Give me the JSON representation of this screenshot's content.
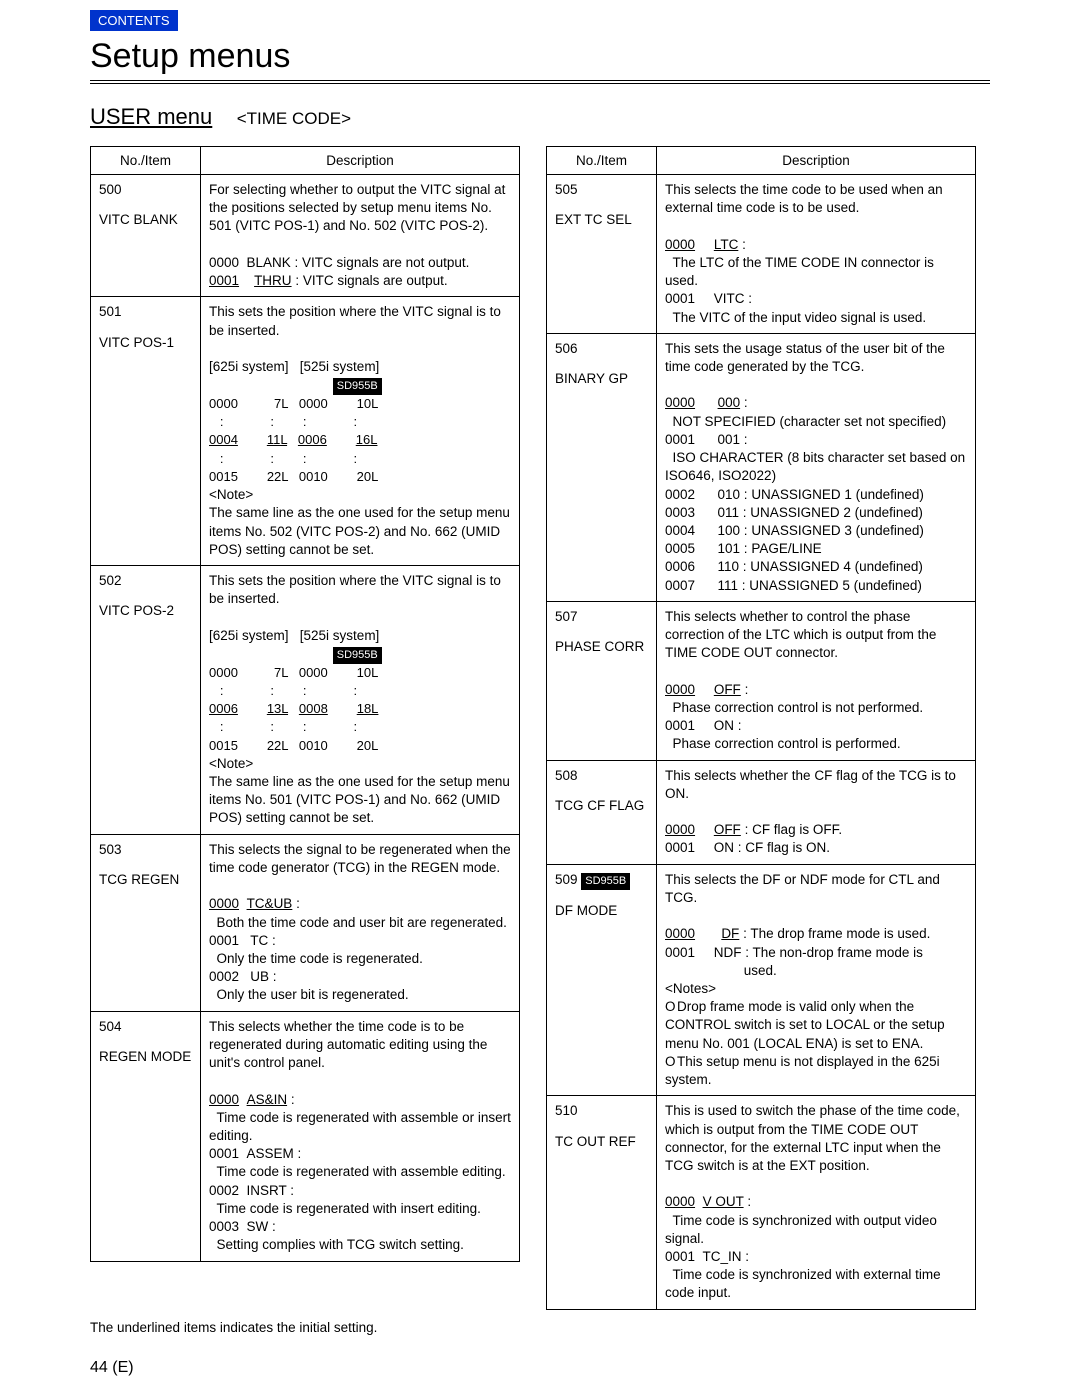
{
  "header": {
    "contents_label": "CONTENTS",
    "title": "Setup menus",
    "menu_title": "USER menu",
    "menu_subtitle": "<TIME CODE>"
  },
  "col_headers": {
    "no": "No./Item",
    "desc": "Description"
  },
  "left": [
    {
      "no": "500",
      "item": "VITC BLANK",
      "desc_html": "For selecting whether to output the VITC signal at the positions selected by setup menu items No. 501 (VITC POS-1) and No. 502 (VITC POS-2).<br><br>0000&nbsp;&nbsp;BLANK : VITC signals are not output.<br><span class='u'>0001</span>&nbsp;&nbsp;&nbsp;&nbsp;<span class='u'>THRU</span> : VITC signals are output."
    },
    {
      "no": "501",
      "item": "VITC POS-1",
      "desc_html": "This sets the position where the VITC signal is to be inserted.<br><br>[625i system]&nbsp;&nbsp;&nbsp;[525i system]<br>&nbsp;&nbsp;&nbsp;&nbsp;&nbsp;&nbsp;&nbsp;&nbsp;&nbsp;&nbsp;&nbsp;&nbsp;&nbsp;&nbsp;&nbsp;&nbsp;&nbsp;&nbsp;&nbsp;&nbsp;&nbsp;&nbsp;&nbsp;&nbsp;&nbsp;&nbsp;&nbsp;&nbsp;&nbsp;&nbsp;&nbsp;&nbsp;&nbsp;<span class='tag'>SD955B</span><br><span class='grid625'>0000          7L   0000        10L\n   :             :        :             :\n<span class='u'>0004</span>        <span class='u'>11L</span>   <span class='u'>0006</span>        <span class='u'>16L</span>\n   :             :        :             :\n0015        22L   0010        20L</span><br>&lt;Note&gt;<br>The same line as the one used for the setup menu items No. 502 (VITC POS-2) and No. 662 (UMID POS) setting cannot be set."
    },
    {
      "no": "502",
      "item": "VITC POS-2",
      "desc_html": "This sets the position where the VITC signal is to be inserted.<br><br>[625i system]&nbsp;&nbsp;&nbsp;[525i system]<br>&nbsp;&nbsp;&nbsp;&nbsp;&nbsp;&nbsp;&nbsp;&nbsp;&nbsp;&nbsp;&nbsp;&nbsp;&nbsp;&nbsp;&nbsp;&nbsp;&nbsp;&nbsp;&nbsp;&nbsp;&nbsp;&nbsp;&nbsp;&nbsp;&nbsp;&nbsp;&nbsp;&nbsp;&nbsp;&nbsp;&nbsp;&nbsp;&nbsp;<span class='tag'>SD955B</span><br><span class='grid625'>0000          7L   0000        10L\n   :             :        :             :\n<span class='u'>0006</span>        <span class='u'>13L</span>   <span class='u'>0008</span>        <span class='u'>18L</span>\n   :             :        :             :\n0015        22L   0010        20L</span><br>&lt;Note&gt;<br>The same line as the one used for the setup menu items No. 501 (VITC POS-1) and No. 662 (UMID POS) setting cannot be set."
    },
    {
      "no": "503",
      "item": "TCG REGEN",
      "desc_html": "This selects the signal to be regenerated when the time code generator (TCG) in the REGEN mode.<br><br><span class='u'>0000</span>&nbsp;&nbsp;<span class='u'>TC&amp;UB</span> :<br>&nbsp;&nbsp;Both the time code and user bit are regenerated.<br>0001&nbsp;&nbsp;&nbsp;TC :<br>&nbsp;&nbsp;Only the time code is regenerated.<br>0002&nbsp;&nbsp;&nbsp;UB :<br>&nbsp;&nbsp;Only the user bit is regenerated."
    },
    {
      "no": "504",
      "item": "REGEN MODE",
      "desc_html": "This selects whether the time code is to be regenerated during automatic editing using the unit's control panel.<br><br><span class='u'>0000</span>&nbsp;&nbsp;<span class='u'>AS&amp;IN</span> :<br>&nbsp;&nbsp;Time code is regenerated with assemble or insert editing.<br>0001&nbsp;&nbsp;ASSEM :<br>&nbsp;&nbsp;Time code is regenerated with assemble editing.<br>0002&nbsp;&nbsp;INSRT :<br>&nbsp;&nbsp;Time code is regenerated with insert editing.<br>0003&nbsp;&nbsp;SW :<br>&nbsp;&nbsp;Setting complies with TCG switch setting."
    }
  ],
  "right": [
    {
      "no": "505",
      "item": "EXT TC SEL",
      "desc_html": "This selects the time code to be used when an external time code is to be used.<br><br><span class='u'>0000</span>&nbsp;&nbsp;&nbsp;&nbsp;&nbsp;<span class='u'>LTC</span> :<br>&nbsp;&nbsp;The LTC of the TIME CODE IN connector is used.<br>0001&nbsp;&nbsp;&nbsp;&nbsp;&nbsp;VITC :<br>&nbsp;&nbsp;The VITC of the input video signal is used."
    },
    {
      "no": "506",
      "item": "BINARY GP",
      "desc_html": "This sets the usage status of the user bit of the time code generated by the TCG.<br><br><span class='u'>0000</span>&nbsp;&nbsp;&nbsp;&nbsp;&nbsp;&nbsp;<span class='u'>000</span> :<br>&nbsp;&nbsp;NOT SPECIFIED (character set not specified)<br>0001&nbsp;&nbsp;&nbsp;&nbsp;&nbsp;&nbsp;001 :<br>&nbsp;&nbsp;ISO CHARACTER (8 bits character set based on ISO646, ISO2022)<br>0002&nbsp;&nbsp;&nbsp;&nbsp;&nbsp;&nbsp;010 : UNASSIGNED 1 (undefined)<br>0003&nbsp;&nbsp;&nbsp;&nbsp;&nbsp;&nbsp;011 : UNASSIGNED 2 (undefined)<br>0004&nbsp;&nbsp;&nbsp;&nbsp;&nbsp;&nbsp;100 : UNASSIGNED 3 (undefined)<br>0005&nbsp;&nbsp;&nbsp;&nbsp;&nbsp;&nbsp;101 : PAGE/LINE<br>0006&nbsp;&nbsp;&nbsp;&nbsp;&nbsp;&nbsp;110 : UNASSIGNED 4 (undefined)<br>0007&nbsp;&nbsp;&nbsp;&nbsp;&nbsp;&nbsp;111 : UNASSIGNED 5 (undefined)"
    },
    {
      "no": "507",
      "item": "PHASE CORR",
      "desc_html": "This selects whether to control the phase correction of the LTC which is output from the TIME CODE OUT connector.<br><br><span class='u'>0000</span>&nbsp;&nbsp;&nbsp;&nbsp;&nbsp;<span class='u'>OFF</span> :<br>&nbsp;&nbsp;Phase correction control is not performed.<br>0001&nbsp;&nbsp;&nbsp;&nbsp;&nbsp;ON :<br>&nbsp;&nbsp;Phase correction control is performed."
    },
    {
      "no": "508",
      "item": "TCG CF FLAG",
      "desc_html": "This selects whether the CF flag of the TCG is to ON.<br><br><span class='u'>0000</span>&nbsp;&nbsp;&nbsp;&nbsp;&nbsp;<span class='u'>OFF</span> : CF flag is OFF.<br>0001&nbsp;&nbsp;&nbsp;&nbsp;&nbsp;ON : CF flag is ON."
    },
    {
      "no": "509 <span class='tag'>SD955B</span>",
      "item": "DF MODE",
      "desc_html": "This selects the DF or NDF mode for CTL and TCG.<br><br><span class='u'>0000</span>&nbsp;&nbsp;&nbsp;&nbsp;&nbsp;&nbsp;&nbsp;<span class='u'>DF</span> : The drop frame mode is used.<br>0001&nbsp;&nbsp;&nbsp;&nbsp;&nbsp;NDF : The non-drop frame mode is<br>&nbsp;&nbsp;&nbsp;&nbsp;&nbsp;&nbsp;&nbsp;&nbsp;&nbsp;&nbsp;&nbsp;&nbsp;&nbsp;&nbsp;&nbsp;&nbsp;&nbsp;&nbsp;&nbsp;&nbsp;&nbsp;used.<br>&lt;Notes&gt;<br><span class='circle'>O</span>Drop frame mode is valid only when the CONTROL switch is set to LOCAL or the setup menu No. 001 (LOCAL ENA) is set to ENA.<br><span class='circle'>O</span>This setup menu is not displayed in the 625i system."
    },
    {
      "no": "510",
      "item": "TC OUT REF",
      "desc_html": "This is used to switch the phase of the time code, which is output from the TIME CODE OUT connector, for the external LTC input when the TCG switch is at the EXT position.<br><br><span class='u'>0000</span>&nbsp;&nbsp;<span class='u'>V OUT</span> :<br>&nbsp;&nbsp;Time code is synchronized with output video signal.<br>0001&nbsp;&nbsp;TC_IN :<br>&nbsp;&nbsp;Time code is synchronized with external time code input."
    }
  ],
  "footnote": "The underlined items indicates the initial setting.",
  "pagenum": "44 (E)"
}
